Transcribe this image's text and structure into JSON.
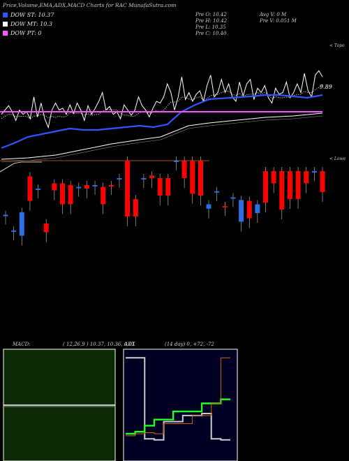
{
  "header": {
    "title": "Price,Volume,EMA,ADX,MACD Charts for RAC MunafaSutra.com",
    "dow_st": "DOW ST: 10.37",
    "dow_mt": "DOW MT: 10.3",
    "dow_pt": "DOW PT: 0",
    "prev_open": "Pre   O: 10.42",
    "prev_high": "Pre   H: 10.42",
    "prev_low": "Pre   L: 10.35",
    "prev_close": "Pre   C: 10.40",
    "avg_volume": "Avg V: 0   M",
    "prev_volume": "Pre   V: 0.051 M",
    "label_topo": "< Topo",
    "label_lower": "< Lowe",
    "price_tag": "9.89"
  },
  "colors": {
    "dow_st": "#3355ff",
    "dow_mt": "#ffffff",
    "dow_pt": "#ff55ff",
    "bull_bar": "#ff0000",
    "bear_bar": "#2b6fe0"
  },
  "macd_panel": {
    "label": "MACD:",
    "params": "( 12,26,9 ) 10.37,  10.36,  0.01"
  },
  "adx_panel": {
    "label": "ADX",
    "params": "(14  day) 0,  +72,  -72"
  },
  "chart_data": {
    "type": "line",
    "price_tag": 9.89,
    "series": [
      {
        "name": "DOW ST",
        "values": [
          10.37
        ]
      },
      {
        "name": "DOW MT",
        "values": [
          10.3
        ]
      },
      {
        "name": "DOW PT",
        "values": [
          0
        ]
      }
    ],
    "prev_candle": {
      "open": 10.42,
      "high": 10.42,
      "low": 10.35,
      "close": 10.4
    },
    "avg_volume_m": 0,
    "prev_volume_m": 0.051,
    "macd": {
      "fast": 12,
      "slow": 26,
      "signal": 9,
      "macd": 10.37,
      "signal_line": 10.36,
      "histogram": 0.01
    },
    "adx": {
      "period_days": 14,
      "adx": 0,
      "plus_di": 72,
      "minus_di": -72
    },
    "price_line": [
      0.55,
      0.5,
      0.45,
      0.52,
      0.62,
      0.5,
      0.55,
      0.52,
      0.6,
      0.35,
      0.58,
      0.42,
      0.6,
      0.7,
      0.5,
      0.42,
      0.5,
      0.48,
      0.55,
      0.44,
      0.54,
      0.42,
      0.5,
      0.62,
      0.45,
      0.55,
      0.48,
      0.4,
      0.3,
      0.5,
      0.46,
      0.55,
      0.52,
      0.6,
      0.44,
      0.5,
      0.56,
      0.5,
      0.35,
      0.45,
      0.5,
      0.58,
      0.48,
      0.4,
      0.42,
      0.35,
      0.2,
      0.3,
      0.5,
      0.35,
      0.12,
      0.38,
      0.3,
      0.4,
      0.32,
      0.28,
      0.4,
      0.22,
      0.1,
      0.35,
      0.3,
      0.15,
      0.3,
      0.2,
      0.35,
      0.4,
      0.18,
      0.34,
      0.2,
      0.15,
      0.38,
      0.25,
      0.3,
      0.22,
      0.36,
      0.42,
      0.25,
      0.32,
      0.3,
      0.18,
      0.36,
      0.3,
      0.2,
      0.3,
      0.08,
      0.28,
      0.35,
      0.1,
      0.05,
      0.12
    ],
    "candles": [
      {
        "d": "bear",
        "t": 0.62,
        "b": 0.62
      },
      {
        "d": "bear",
        "t": 0.8,
        "b": 0.8
      },
      {
        "d": "bear",
        "t": 0.59,
        "b": 0.86
      },
      {
        "d": "bull",
        "t": 0.18,
        "b": 0.46
      },
      {
        "d": "bear",
        "t": 0.32,
        "b": 0.32
      },
      {
        "d": "bull",
        "t": 0.72,
        "b": 0.82
      },
      {
        "d": "bull",
        "t": 0.26,
        "b": 0.34
      },
      {
        "d": "bull",
        "t": 0.26,
        "b": 0.5
      },
      {
        "d": "bull",
        "t": 0.28,
        "b": 0.5
      },
      {
        "d": "bear",
        "t": 0.3,
        "b": 0.3
      },
      {
        "d": "bull",
        "t": 0.28,
        "b": 0.32
      },
      {
        "d": "bear",
        "t": 0.28,
        "b": 0.28
      },
      {
        "d": "bull",
        "t": 0.3,
        "b": 0.5
      },
      {
        "d": "bull",
        "t": 0.28,
        "b": 0.28
      },
      {
        "d": "bear",
        "t": 0.2,
        "b": 0.2
      },
      {
        "d": "bull",
        "t": 0.0,
        "b": 0.64
      },
      {
        "d": "bull",
        "t": 0.44,
        "b": 0.64
      },
      {
        "d": "bear",
        "t": 0.2,
        "b": 0.2
      },
      {
        "d": "bull",
        "t": 0.17,
        "b": 0.2
      },
      {
        "d": "bull",
        "t": 0.2,
        "b": 0.4
      },
      {
        "d": "bull",
        "t": 0.2,
        "b": 0.4
      },
      {
        "d": "bear",
        "t": 0.0,
        "b": 0.0
      },
      {
        "d": "bull",
        "t": 0.0,
        "b": 0.2
      },
      {
        "d": "bull",
        "t": 0.0,
        "b": 0.38
      },
      {
        "d": "bull",
        "t": 0.0,
        "b": 0.4
      },
      {
        "d": "bear",
        "t": 0.5,
        "b": 0.55
      },
      {
        "d": "bear",
        "t": 0.35,
        "b": 0.35
      },
      {
        "d": "bull",
        "t": 0.52,
        "b": 0.52
      },
      {
        "d": "bear",
        "t": 0.42,
        "b": 0.42
      },
      {
        "d": "bear",
        "t": 0.45,
        "b": 0.7
      },
      {
        "d": "bull",
        "t": 0.46,
        "b": 0.66
      },
      {
        "d": "bear",
        "t": 0.5,
        "b": 0.6
      },
      {
        "d": "bull",
        "t": 0.12,
        "b": 0.48
      },
      {
        "d": "bull",
        "t": 0.12,
        "b": 0.26
      },
      {
        "d": "bull",
        "t": 0.12,
        "b": 0.56
      },
      {
        "d": "bull",
        "t": 0.12,
        "b": 0.44
      },
      {
        "d": "bull",
        "t": 0.12,
        "b": 0.44
      },
      {
        "d": "bull",
        "t": 0.12,
        "b": 0.26
      },
      {
        "d": "bear",
        "t": 0.12,
        "b": 0.12
      },
      {
        "d": "bull",
        "t": 0.12,
        "b": 0.36
      }
    ],
    "macd_line": [
      0.5,
      0.5,
      0.5,
      0.5,
      0.5,
      0.5,
      0.5,
      0.5,
      0.5,
      0.5
    ],
    "adx_lines": {
      "white": [
        0.05,
        0.05,
        0.85,
        0.86,
        0.68,
        0.68,
        0.62,
        0.62,
        0.6,
        0.85,
        0.86,
        0.86
      ],
      "green": [
        0.8,
        0.78,
        0.72,
        0.66,
        0.66,
        0.58,
        0.58,
        0.58,
        0.5,
        0.5,
        0.46,
        0.46
      ],
      "orange": [
        0.82,
        0.8,
        0.79,
        0.8,
        0.7,
        0.7,
        0.7,
        0.62,
        0.62,
        0.5,
        0.05,
        0.05
      ]
    }
  }
}
